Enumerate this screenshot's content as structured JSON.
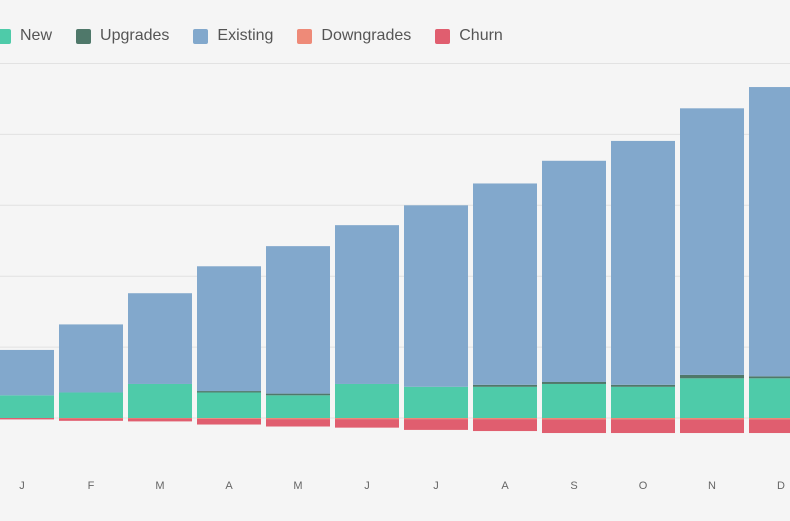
{
  "chart_data": {
    "type": "bar",
    "stacked": true,
    "categories": [
      "J",
      "F",
      "M",
      "A",
      "M",
      "J",
      "J",
      "A",
      "S",
      "O",
      "N",
      "D"
    ],
    "series": [
      {
        "name": "New",
        "color": "#4ecba9",
        "values": [
          8,
          9,
          12,
          9,
          8,
          12,
          11,
          11,
          12,
          11,
          14,
          14
        ]
      },
      {
        "name": "Upgrades",
        "color": "#4f786a",
        "values": [
          0,
          0,
          0,
          0.5,
          0.6,
          0,
          0,
          0.7,
          0.7,
          0.7,
          1.2,
          0.7
        ]
      },
      {
        "name": "Existing",
        "color": "#82a8cc",
        "values": [
          16,
          24,
          32,
          44,
          52,
          56,
          64,
          71,
          78,
          86,
          94,
          102
        ]
      },
      {
        "name": "Downgrades",
        "color": "#ee8a78",
        "values": [
          0,
          -0.2,
          -0.2,
          -0.3,
          -0.4,
          -0.4,
          -0.4,
          -0.4,
          -0.5,
          -0.5,
          -0.5,
          -0.5
        ]
      },
      {
        "name": "Churn",
        "color": "#e05e6f",
        "values": [
          -0.5,
          -0.8,
          -1,
          -2,
          -2.6,
          -3,
          -3.8,
          -4.2,
          -4.8,
          -4.8,
          -4.8,
          -4.8
        ]
      }
    ],
    "ylim": [
      -14,
      128
    ],
    "grid": true,
    "legend": "top-left"
  }
}
